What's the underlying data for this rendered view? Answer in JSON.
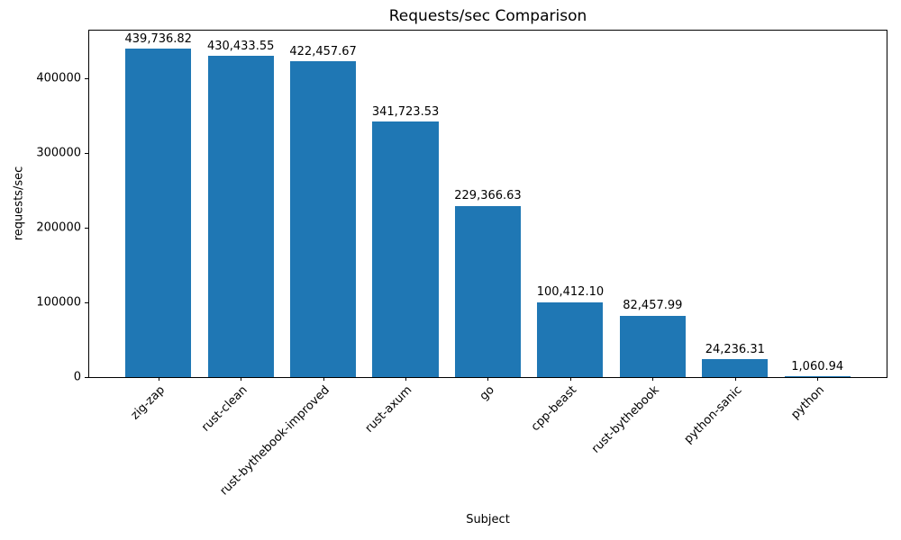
{
  "chart_data": {
    "type": "bar",
    "title": "Requests/sec Comparison",
    "xlabel": "Subject",
    "ylabel": "requests/sec",
    "categories": [
      "zig-zap",
      "rust-clean",
      "rust-bythebook-improved",
      "rust-axum",
      "go",
      "cpp-beast",
      "rust-bythebook",
      "python-sanic",
      "python"
    ],
    "values": [
      439736.82,
      430433.55,
      422457.67,
      341723.53,
      229366.63,
      100412.1,
      82457.99,
      24236.31,
      1060.94
    ],
    "value_labels": [
      "439,736.82",
      "430,433.55",
      "422,457.67",
      "341,723.53",
      "229,366.63",
      "100,412.10",
      "82,457.99",
      "24,236.31",
      "1,060.94"
    ],
    "ylim": [
      0,
      464000
    ],
    "ytick_values": [
      0,
      100000,
      200000,
      300000,
      400000
    ],
    "ytick_labels": [
      "0",
      "100000",
      "200000",
      "300000",
      "400000"
    ],
    "x_tick_rotation": 45,
    "grid": false,
    "legend": false,
    "bar_color": "#1f77b4",
    "spine_color": "#000000",
    "text_color": "#000000",
    "background_color": "#ffffff"
  }
}
